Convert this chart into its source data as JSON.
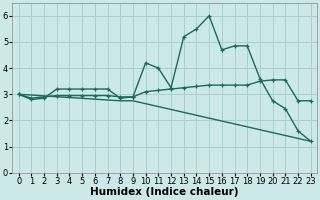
{
  "background_color": "#cce8e8",
  "grid_color": "#aacfcf",
  "line_color": "#1a6b5a",
  "xlabel": "Humidex (Indice chaleur)",
  "ylim": [
    0,
    6.5
  ],
  "xlim": [
    -0.5,
    23.5
  ],
  "yticks": [
    0,
    1,
    2,
    3,
    4,
    5,
    6
  ],
  "xticks": [
    0,
    1,
    2,
    3,
    4,
    5,
    6,
    7,
    8,
    9,
    10,
    11,
    12,
    13,
    14,
    15,
    16,
    17,
    18,
    19,
    20,
    21,
    22,
    23
  ],
  "series1_x": [
    0,
    1,
    2,
    3,
    4,
    5,
    6,
    7,
    8,
    9,
    10,
    11,
    12,
    13,
    14,
    15,
    16,
    17,
    18,
    19,
    20,
    21,
    22,
    23
  ],
  "series1_y": [
    3.0,
    2.8,
    2.85,
    3.2,
    3.2,
    3.2,
    3.2,
    3.2,
    2.85,
    2.9,
    4.2,
    4.0,
    3.25,
    5.2,
    5.5,
    6.0,
    4.7,
    4.85,
    4.85,
    3.6,
    2.75,
    2.45,
    1.6,
    1.2
  ],
  "series2_x": [
    0,
    1,
    2,
    3,
    4,
    5,
    6,
    7,
    8,
    9,
    10,
    11,
    12,
    13,
    14,
    15,
    16,
    17,
    18,
    19,
    20,
    21,
    22,
    23
  ],
  "series2_y": [
    3.0,
    2.85,
    2.9,
    2.95,
    2.95,
    2.95,
    2.95,
    2.95,
    2.9,
    2.9,
    3.1,
    3.15,
    3.2,
    3.25,
    3.3,
    3.35,
    3.35,
    3.35,
    3.35,
    3.5,
    3.55,
    3.55,
    2.75,
    2.75
  ],
  "series3_x": [
    0,
    8,
    9,
    23
  ],
  "series3_y": [
    3.0,
    2.75,
    2.75,
    1.2
  ],
  "font_size_label": 7.5,
  "font_size_tick": 6.0,
  "linewidth": 1.0,
  "markersize": 3.5
}
